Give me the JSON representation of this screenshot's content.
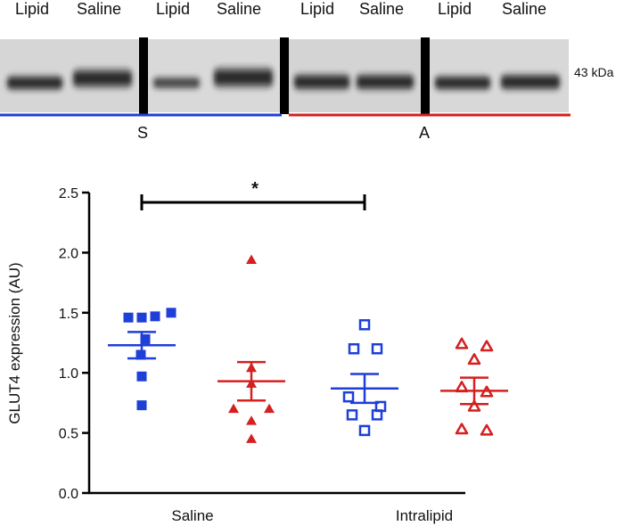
{
  "blot": {
    "lanes": [
      "Lipid",
      "Saline",
      "Lipid",
      "Saline",
      "Lipid",
      "Saline",
      "Lipid",
      "Saline"
    ],
    "marker": "43 kDa",
    "groups": [
      {
        "label": "S",
        "color": "#1e3fd8"
      },
      {
        "label": "A",
        "color": "#d42020"
      }
    ]
  },
  "chart_data": {
    "type": "scatter",
    "ylabel": "GLUT4 expression (AU)",
    "ylim": [
      0,
      2.5
    ],
    "yticks": [
      "0.0",
      "0.5",
      "1.0",
      "1.5",
      "2.0",
      "2.5"
    ],
    "categories": [
      "Saline",
      "Intralipid"
    ],
    "significance": {
      "label": "*",
      "between": [
        0,
        2
      ]
    },
    "series": [
      {
        "color": "#1e3fd8",
        "marker": "square-filled",
        "mean": 1.23,
        "sem": 0.11,
        "values": [
          1.46,
          1.46,
          1.47,
          1.5,
          1.28,
          1.15,
          0.97,
          0.73
        ]
      },
      {
        "color": "#d42020",
        "marker": "triangle-filled",
        "mean": 0.93,
        "sem": 0.16,
        "values": [
          1.94,
          1.04,
          0.91,
          0.7,
          0.7,
          0.6,
          0.45
        ]
      },
      {
        "color": "#1e3fd8",
        "marker": "square-open",
        "mean": 0.87,
        "sem": 0.12,
        "values": [
          1.4,
          1.2,
          1.2,
          0.8,
          0.72,
          0.65,
          0.65,
          0.52
        ]
      },
      {
        "color": "#d42020",
        "marker": "triangle-open",
        "mean": 0.85,
        "sem": 0.11,
        "values": [
          1.24,
          1.22,
          1.11,
          0.88,
          0.84,
          0.72,
          0.53,
          0.52
        ]
      }
    ]
  }
}
